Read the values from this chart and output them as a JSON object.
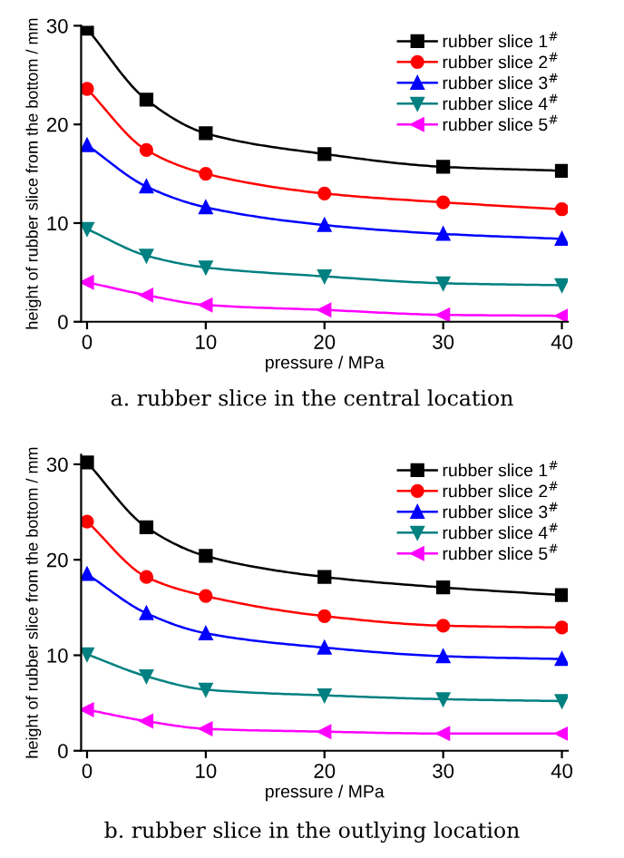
{
  "chart_data": [
    {
      "type": "line",
      "xlabel": "pressure / MPa",
      "ylabel": "height of rubber slice from the bottom / mm",
      "annotations": [
        "a. rubber slice in the central location"
      ],
      "x": [
        0,
        5,
        10,
        20,
        30,
        40
      ],
      "xlim": [
        -0.5,
        40.5
      ],
      "ylim": [
        0,
        30
      ],
      "xticks": [
        0,
        10,
        20,
        30,
        40
      ],
      "yticks": [
        0,
        10,
        20,
        30
      ],
      "grid": false,
      "legend": "top right",
      "line_style": "solid",
      "series": [
        {
          "name": "rubber slice 1$^{#}$",
          "color": "#000000",
          "marker": "square",
          "values": [
            29.7,
            22.5,
            19.1,
            17.0,
            15.7,
            15.3
          ]
        },
        {
          "name": "rubber slice 2$^{#}$",
          "color": "#ff0000",
          "marker": "circle",
          "values": [
            23.6,
            17.4,
            15.0,
            13.0,
            12.1,
            11.4
          ]
        },
        {
          "name": "rubber slice 3$^{#}$",
          "color": "#0000ff",
          "marker": "triangle",
          "values": [
            17.9,
            13.7,
            11.6,
            9.8,
            8.9,
            8.4
          ]
        },
        {
          "name": "rubber slice 4$^{#}$",
          "color": "#008080",
          "marker": "triangle_down",
          "values": [
            9.4,
            6.7,
            5.5,
            4.6,
            3.9,
            3.7
          ]
        },
        {
          "name": "rubber slice 5$^{#}$",
          "color": "#ff00ff",
          "marker": "triangle_left",
          "values": [
            4.0,
            2.7,
            1.7,
            1.2,
            0.7,
            0.6
          ]
        }
      ]
    },
    {
      "type": "line",
      "xlabel": "pressure / MPa",
      "ylabel": "height of rubber slice from the bottom / mm",
      "annotations": [
        "b. rubber slice in the outlying location"
      ],
      "x": [
        0,
        5,
        10,
        20,
        30,
        40
      ],
      "xlim": [
        -0.5,
        40.5
      ],
      "ylim": [
        0,
        31
      ],
      "xticks": [
        0,
        10,
        20,
        30,
        40
      ],
      "yticks": [
        0,
        10,
        20,
        30
      ],
      "grid": false,
      "legend": "top right",
      "line_style": "solid",
      "series": [
        {
          "name": "rubber slice 1$^{#}$",
          "color": "#000000",
          "marker": "square",
          "values": [
            30.2,
            23.4,
            20.4,
            18.2,
            17.1,
            16.3
          ]
        },
        {
          "name": "rubber slice 2$^{#}$",
          "color": "#ff0000",
          "marker": "circle",
          "values": [
            24.0,
            18.2,
            16.2,
            14.1,
            13.1,
            12.9
          ]
        },
        {
          "name": "rubber slice 3$^{#}$",
          "color": "#0000ff",
          "marker": "triangle",
          "values": [
            18.5,
            14.4,
            12.3,
            10.8,
            9.9,
            9.6
          ]
        },
        {
          "name": "rubber slice 4$^{#}$",
          "color": "#008080",
          "marker": "triangle_down",
          "values": [
            10.1,
            7.8,
            6.4,
            5.8,
            5.4,
            5.2
          ]
        },
        {
          "name": "rubber slice 5$^{#}$",
          "color": "#ff00ff",
          "marker": "triangle_left",
          "values": [
            4.3,
            3.1,
            2.3,
            2.0,
            1.8,
            1.8
          ]
        }
      ]
    }
  ]
}
